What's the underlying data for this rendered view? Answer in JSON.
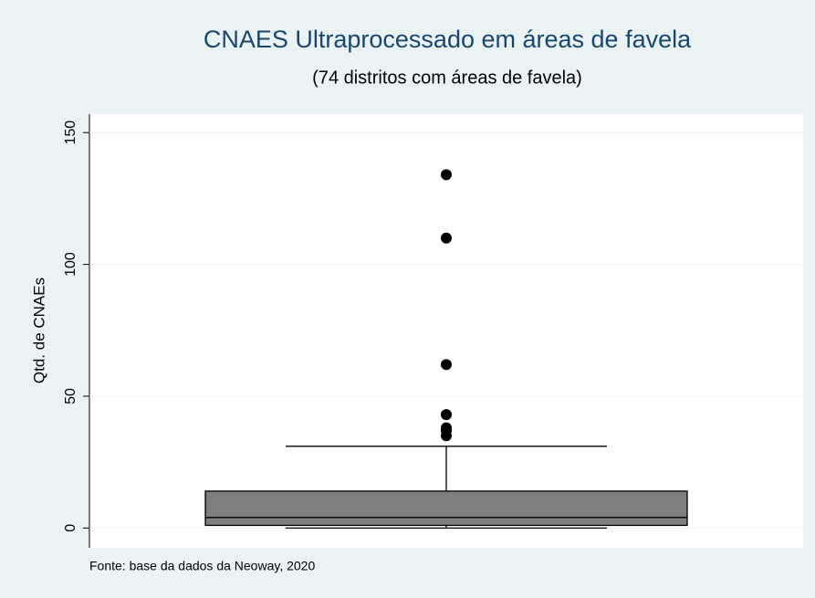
{
  "chart_data": {
    "type": "box",
    "title": "CNAES Ultraprocessado em áreas de favela",
    "subtitle": "(74 distritos com áreas de favela)",
    "ylabel": "Qtd. de CNAEs",
    "note": "Fonte: base da dados da Neoway, 2020",
    "q1": 1,
    "median": 4,
    "q3": 14,
    "whisker_low": 0,
    "whisker_high": 31,
    "outliers": [
      134,
      110,
      62,
      43,
      38,
      37,
      35
    ],
    "color": "#7f7f7f",
    "outlier_color": "#000000",
    "ylim": [
      -7.5,
      157
    ],
    "yticks": [
      0,
      50,
      100,
      150
    ],
    "grid": true
  }
}
